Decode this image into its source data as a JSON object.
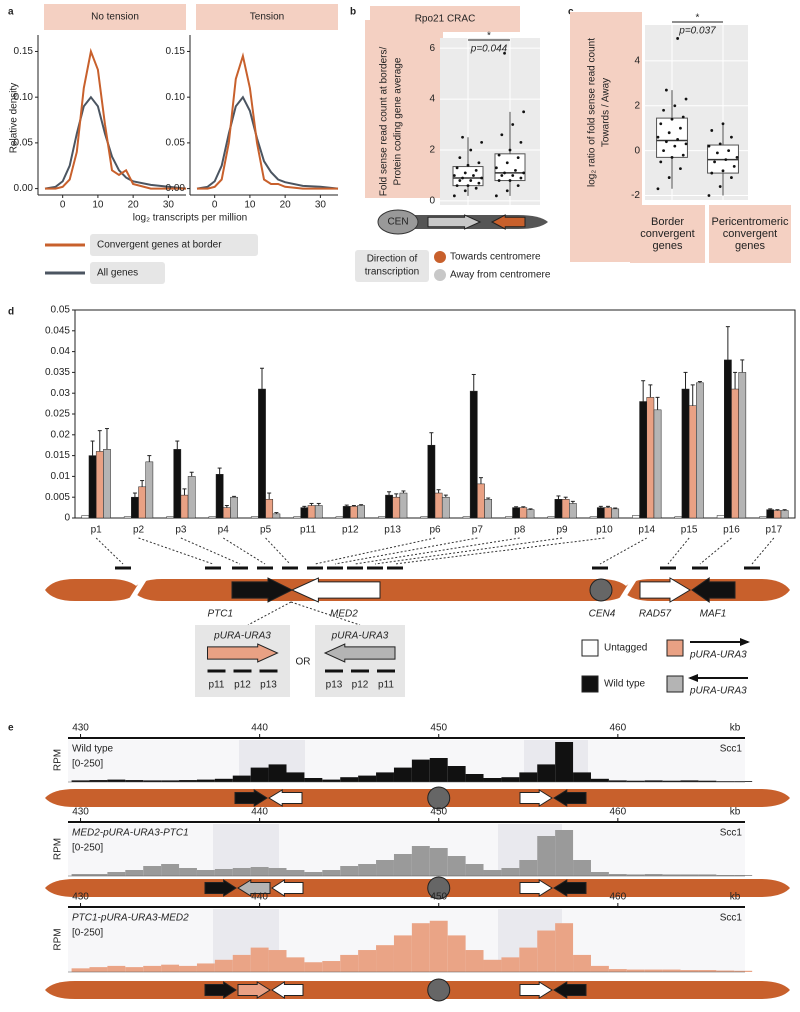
{
  "panel_labels": [
    "a",
    "b",
    "c",
    "d",
    "e"
  ],
  "chart_data": [
    {
      "type": "line",
      "title": "No tension",
      "y_label": "Relative density",
      "x_label": "log₂ transcripts per million",
      "x": [
        -5,
        -2,
        0,
        2,
        4,
        6,
        8,
        10,
        12,
        14,
        16,
        18,
        20,
        25,
        30,
        35
      ],
      "series": [
        {
          "name": "Convergent genes at border",
          "color": "#c8602c",
          "values": [
            0,
            0,
            0.002,
            0.01,
            0.04,
            0.11,
            0.15,
            0.13,
            0.07,
            0.02,
            0.015,
            0.02,
            0.005,
            0,
            0,
            0
          ]
        },
        {
          "name": "All genes",
          "color": "#4b5561",
          "values": [
            0,
            0.002,
            0.008,
            0.025,
            0.06,
            0.09,
            0.1,
            0.09,
            0.06,
            0.035,
            0.02,
            0.012,
            0.008,
            0.004,
            0.002,
            0
          ]
        }
      ],
      "xlim": [
        -7,
        35
      ],
      "ylim": [
        -0.007,
        0.168
      ],
      "xticks": [
        0,
        10,
        20,
        30
      ],
      "yticks": [
        {
          "value": 0,
          "label": "0.00"
        },
        0.05,
        {
          "value": 0.1,
          "label": "0.10"
        },
        0.15
      ]
    },
    {
      "type": "line",
      "title": "Tension",
      "x": [
        -5,
        -2,
        0,
        2,
        4,
        6,
        8,
        10,
        12,
        14,
        16,
        18,
        20,
        25,
        30,
        35
      ],
      "series": [
        {
          "color": "#c8602c",
          "values": [
            0,
            0,
            0.002,
            0.01,
            0.05,
            0.12,
            0.145,
            0.11,
            0.05,
            0.01,
            0.005,
            0.005,
            0.002,
            0,
            0,
            0
          ]
        },
        {
          "color": "#4b5561",
          "values": [
            0,
            0.002,
            0.008,
            0.025,
            0.06,
            0.09,
            0.1,
            0.085,
            0.055,
            0.03,
            0.018,
            0.01,
            0.007,
            0.003,
            0.002,
            0
          ]
        }
      ],
      "xlim": [
        -7,
        35
      ],
      "ylim": [
        -0.007,
        0.168
      ],
      "xticks": [
        0,
        10,
        20,
        30
      ],
      "yticks": [
        {
          "value": 0,
          "label": "0.00"
        },
        0.05,
        {
          "value": 0.1,
          "label": "0.10"
        },
        0.15
      ]
    },
    {
      "type": "box",
      "title": "Rpo21 CRAC",
      "y_label": [
        "Fold sense read count at borders/",
        "Protein coding gene average"
      ],
      "ylim": [
        -0.16,
        6.4
      ],
      "yticks": [
        0,
        2,
        4,
        6
      ],
      "significance": "*",
      "p_label": "p=0.044",
      "boxes": [
        {
          "whisker_low": 0.2,
          "q1": 0.6,
          "median": 0.9,
          "q3": 1.35,
          "whisker_high": 2.5,
          "points": [
            0.2,
            0.4,
            0.5,
            0.6,
            0.6,
            0.7,
            0.8,
            0.8,
            0.9,
            0.9,
            1.0,
            1.0,
            1.1,
            1.2,
            1.3,
            1.4,
            1.5,
            1.7,
            2.0,
            2.3,
            2.5
          ]
        },
        {
          "whisker_low": 0.2,
          "q1": 0.8,
          "median": 1.1,
          "q3": 1.85,
          "whisker_high": 3.5,
          "points": [
            0.2,
            0.4,
            0.6,
            0.8,
            0.8,
            0.9,
            1.0,
            1.0,
            1.1,
            1.1,
            1.2,
            1.3,
            1.5,
            1.7,
            1.8,
            2.0,
            2.3,
            2.6,
            3.0,
            3.5,
            5.8
          ]
        }
      ]
    },
    {
      "type": "box",
      "y_label": [
        "log₂ ratio of fold sense read count",
        "Towards / Away"
      ],
      "categories": [
        "Border convergent genes",
        "Pericentromeric convergent genes"
      ],
      "ylim": [
        -2.2,
        5.6
      ],
      "yticks": [
        -2,
        0,
        2,
        4
      ],
      "significance": "*",
      "p_label": "p=0.037",
      "boxes": [
        {
          "whisker_low": -1.7,
          "q1": -0.3,
          "median": 0.45,
          "q3": 1.45,
          "whisker_high": 2.7,
          "points": [
            -1.7,
            -1.2,
            -0.8,
            -0.5,
            -0.3,
            -0.2,
            0,
            0.2,
            0.3,
            0.4,
            0.5,
            0.6,
            0.8,
            1.0,
            1.2,
            1.4,
            1.5,
            1.8,
            2.0,
            2.3,
            2.7,
            5.0
          ]
        },
        {
          "whisker_low": -2.0,
          "q1": -1.0,
          "median": -0.4,
          "q3": 0.25,
          "whisker_high": 1.2,
          "points": [
            -2.0,
            -1.6,
            -1.2,
            -1.0,
            -0.9,
            -0.7,
            -0.5,
            -0.4,
            -0.3,
            -0.1,
            0,
            0.2,
            0.3,
            0.6,
            0.9,
            1.2
          ]
        }
      ]
    },
    {
      "type": "bar",
      "categories": [
        "p1",
        "p2",
        "p3",
        "p4",
        "p5",
        "p11",
        "p12",
        "p13",
        "p6",
        "p7",
        "p8",
        "p9",
        "p10",
        "p14",
        "p15",
        "p16",
        "p17"
      ],
      "ylim": [
        0,
        0.05
      ],
      "yticks": [
        0,
        0.005,
        0.01,
        0.015,
        0.02,
        0.025,
        0.03,
        0.035,
        0.04,
        0.045,
        0.05
      ],
      "series": [
        {
          "name": "Untagged",
          "color": "#ffffff",
          "values": [
            0.0006,
            0.0003,
            0.0003,
            0.0003,
            0.0003,
            0.0003,
            0.0003,
            0.0003,
            0.0003,
            0.0003,
            0.0003,
            0.0003,
            0.0003,
            0.0006,
            0.0003,
            0.0006,
            0.0003
          ]
        },
        {
          "name": "Wild type",
          "color": "#111111",
          "values": [
            0.015,
            0.005,
            0.0165,
            0.0105,
            0.031,
            0.0025,
            0.0028,
            0.0055,
            0.0175,
            0.0305,
            0.0025,
            0.0045,
            0.0025,
            0.028,
            0.031,
            0.038,
            0.002
          ],
          "errors": [
            0.0035,
            0.001,
            0.002,
            0.0015,
            0.005,
            0.0003,
            0.0003,
            0.0008,
            0.003,
            0.004,
            0.0002,
            0.0008,
            0.0003,
            0.005,
            0.004,
            0.008,
            0.0002
          ]
        },
        {
          "name": "pURA-URA3",
          "color": "#e9a184",
          "values": [
            0.016,
            0.0075,
            0.0055,
            0.0025,
            0.0045,
            0.003,
            0.0028,
            0.005,
            0.006,
            0.0082,
            0.0025,
            0.0045,
            0.0025,
            0.029,
            0.027,
            0.031,
            0.0018
          ],
          "errors": [
            0.005,
            0.0015,
            0.0015,
            0.0005,
            0.0015,
            0.0005,
            0.0002,
            0.0008,
            0.0008,
            0.0015,
            0.0002,
            0.0005,
            0.0003,
            0.003,
            0.005,
            0.004,
            0.0002
          ]
        },
        {
          "name": "pURA-URA3",
          "color": "#b4b4b4",
          "values": [
            0.0165,
            0.0135,
            0.01,
            0.005,
            0.001,
            0.003,
            0.003,
            0.006,
            0.005,
            0.0045,
            0.002,
            0.0035,
            0.0022,
            0.026,
            0.0325,
            0.035,
            0.0018
          ],
          "errors": [
            0.005,
            0.0015,
            0.001,
            0.0002,
            0.0003,
            0.0005,
            0.0002,
            0.0005,
            0.0005,
            0.0003,
            0.0002,
            0.0005,
            0.0002,
            0.003,
            0.0003,
            0.003,
            0.0002
          ]
        }
      ]
    },
    {
      "type": "histogram",
      "title": "Wild type",
      "protein": "Scc1",
      "y_label": "RPM",
      "range_label": "[0-250]",
      "x_unit": "kb",
      "color": "#111111",
      "x": [
        430,
        431,
        432,
        433,
        434,
        435,
        436,
        437,
        438,
        439,
        440,
        441,
        442,
        443,
        444,
        445,
        446,
        447,
        448,
        449,
        450,
        451,
        452,
        453,
        454,
        455,
        456,
        457,
        458,
        459,
        460,
        461,
        462,
        463,
        464,
        465,
        466,
        467
      ],
      "values": [
        10,
        12,
        15,
        12,
        10,
        10,
        12,
        15,
        20,
        40,
        90,
        110,
        60,
        25,
        15,
        30,
        40,
        60,
        90,
        140,
        150,
        100,
        50,
        25,
        30,
        60,
        110,
        250,
        60,
        20,
        10,
        8,
        10,
        8,
        10,
        8,
        5,
        5
      ],
      "xlim": [
        429.3,
        467.1
      ],
      "ylim": [
        0,
        250
      ],
      "xticks": [
        430,
        440,
        450,
        460
      ]
    },
    {
      "type": "histogram",
      "title": "MED2-pURA-URA3-PTC1",
      "protein": "Scc1",
      "y_label": "RPM",
      "range_label": "[0-250]",
      "x_unit": "kb",
      "color": "#9a9a9a",
      "x": [
        430,
        431,
        432,
        433,
        434,
        435,
        436,
        437,
        438,
        439,
        440,
        441,
        442,
        443,
        444,
        445,
        446,
        447,
        448,
        449,
        450,
        451,
        452,
        453,
        454,
        455,
        456,
        457,
        458,
        459,
        460,
        461,
        462,
        463,
        464,
        465,
        466,
        467
      ],
      "values": [
        10,
        10,
        20,
        30,
        50,
        60,
        40,
        30,
        35,
        40,
        45,
        40,
        30,
        20,
        30,
        50,
        60,
        80,
        110,
        150,
        140,
        100,
        60,
        30,
        40,
        80,
        200,
        230,
        80,
        20,
        10,
        8,
        10,
        8,
        8,
        8,
        5,
        5
      ],
      "xlim": [
        429.3,
        467.1
      ],
      "ylim": [
        0,
        250
      ],
      "xticks": [
        430,
        440,
        450,
        460
      ]
    },
    {
      "type": "histogram",
      "title": "PTC1-pURA-URA3-MED2",
      "protein": "Scc1",
      "y_label": "RPM",
      "range_label": "[0-250]",
      "x_unit": "kb",
      "color": "#eaa486",
      "x": [
        430,
        431,
        432,
        433,
        434,
        435,
        436,
        437,
        438,
        439,
        440,
        441,
        442,
        443,
        444,
        445,
        446,
        447,
        448,
        449,
        450,
        451,
        452,
        453,
        454,
        455,
        456,
        457,
        458,
        459,
        460,
        461,
        462,
        463,
        464,
        465,
        466,
        467
      ],
      "values": [
        15,
        20,
        25,
        20,
        25,
        30,
        25,
        35,
        50,
        70,
        100,
        90,
        60,
        40,
        45,
        70,
        90,
        110,
        150,
        200,
        210,
        150,
        90,
        50,
        60,
        100,
        170,
        200,
        70,
        25,
        12,
        10,
        10,
        10,
        8,
        8,
        6,
        5
      ],
      "xlim": [
        429.3,
        467.1
      ],
      "ylim": [
        0,
        250
      ],
      "xticks": [
        430,
        440,
        450,
        460
      ]
    }
  ],
  "diagram_b": {
    "centromere": "CEN",
    "legend_title": [
      "Direction of",
      "transcription"
    ],
    "legend": [
      {
        "label": "Towards centromere",
        "color": "#c8602c"
      },
      {
        "label": "Away from centromere",
        "color": "#c8c8c8"
      }
    ]
  },
  "diagram_d": {
    "genes": [
      "PTC1",
      "MED2",
      "CEN4",
      "RAD57",
      "MAF1"
    ],
    "or": "OR",
    "constructs": [
      {
        "label": "pURA-URA3",
        "probes": [
          "p11",
          "p12",
          "p13"
        ]
      },
      {
        "label": "pURA-URA3",
        "probes": [
          "p13",
          "p12",
          "p11"
        ]
      }
    ]
  }
}
